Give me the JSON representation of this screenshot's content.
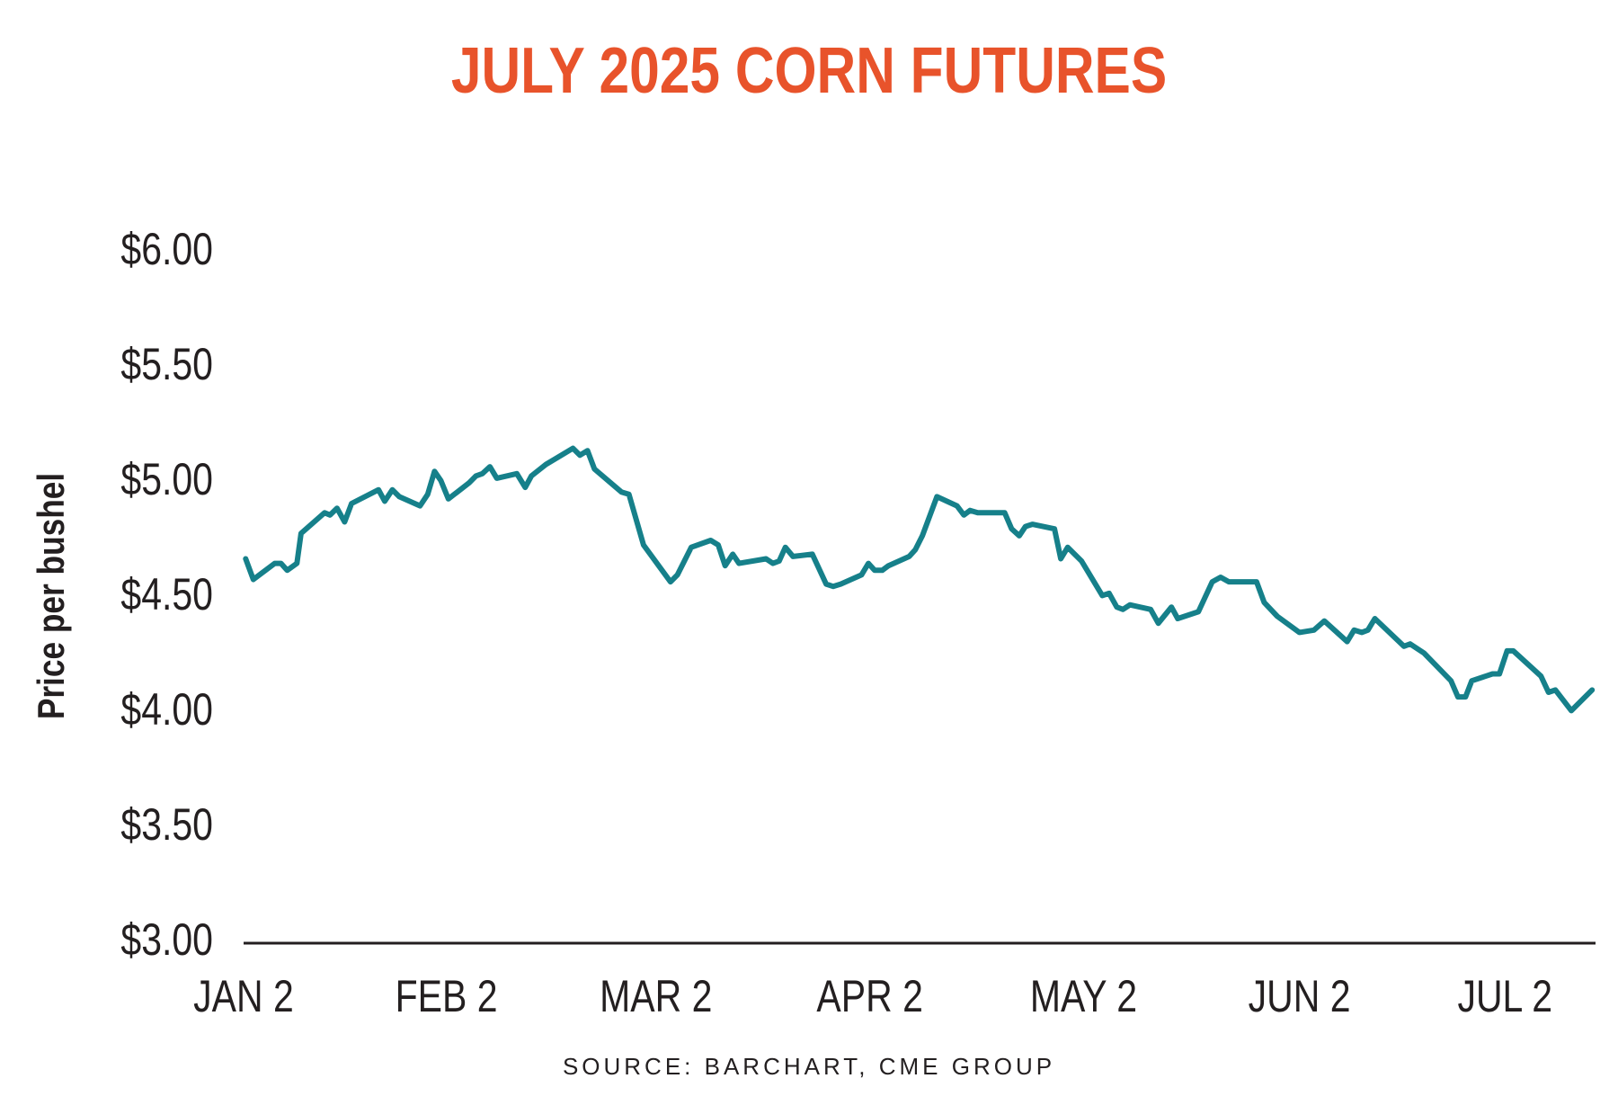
{
  "chart_data": {
    "type": "line",
    "title": "JULY 2025 CORN FUTURES",
    "y_label": "Price per bushel",
    "source": "SOURCE: BARCHART, CME GROUP",
    "xlim": [
      0,
      195
    ],
    "xticks": [
      {
        "value": 0,
        "label": "JAN 2"
      },
      {
        "value": 29.3,
        "label": "FEB 2"
      },
      {
        "value": 59.6,
        "label": "MAR 2"
      },
      {
        "value": 90.5,
        "label": "APR 2"
      },
      {
        "value": 121.4,
        "label": "MAY 2"
      },
      {
        "value": 152.6,
        "label": "JUN 2"
      },
      {
        "value": 182.3,
        "label": "JUL 2"
      }
    ],
    "ylim": [
      3,
      6
    ],
    "yticks": [
      {
        "value": 3,
        "label": "$3.00"
      },
      {
        "value": 3.5,
        "label": "$3.50"
      },
      {
        "value": 4,
        "label": "$4.00"
      },
      {
        "value": 4.5,
        "label": "$4.50"
      },
      {
        "value": 5,
        "label": "$5.00"
      },
      {
        "value": 5.5,
        "label": "$5.50"
      },
      {
        "value": 6,
        "label": "$6.00"
      }
    ],
    "grid": false,
    "x": [
      0.3,
      1.4,
      4.5,
      5.4,
      6.3,
      7.7,
      8.3,
      11.7,
      12.5,
      13.5,
      14.6,
      15.6,
      19.5,
      20.4,
      21.5,
      22.5,
      25.5,
      26.6,
      27.6,
      28.5,
      29.6,
      32.6,
      33.6,
      34.5,
      35.6,
      36.6,
      39.5,
      40.7,
      41.6,
      43.7,
      47.6,
      48.6,
      49.7,
      50.7,
      54.6,
      55.7,
      57.8,
      61.7,
      62.7,
      64.7,
      67.5,
      68.6,
      69.6,
      70.7,
      71.6,
      75.5,
      76.5,
      77.4,
      78.3,
      79.4,
      82.2,
      84.2,
      85.2,
      86.3,
      89.3,
      90.3,
      91.2,
      92.3,
      93.2,
      96.2,
      97.1,
      98.1,
      100.2,
      103.1,
      104.1,
      105,
      106.1,
      110,
      111,
      112.1,
      113,
      114,
      117.2,
      118.1,
      119.1,
      121.1,
      124.1,
      125.1,
      126.2,
      127.1,
      128.1,
      131.1,
      132.2,
      134.1,
      135,
      138,
      140,
      141.2,
      142.4,
      146.4,
      147.5,
      149.4,
      152.6,
      154.7,
      156.2,
      159.5,
      160.5,
      161.6,
      162.5,
      163.5,
      167.7,
      168.6,
      170.6,
      174.5,
      175.5,
      176.6,
      177.5,
      180.5,
      181.5,
      182.6,
      183.5,
      187.5,
      188.6,
      189.6,
      191.9,
      194.9
    ],
    "series": [
      {
        "name": "July 2025 corn futures",
        "color": "#16808a",
        "values": [
          4.67,
          4.58,
          4.65,
          4.65,
          4.62,
          4.65,
          4.78,
          4.87,
          4.86,
          4.89,
          4.83,
          4.91,
          4.97,
          4.92,
          4.97,
          4.94,
          4.9,
          4.95,
          5.05,
          5.01,
          4.93,
          5.0,
          5.03,
          5.04,
          5.07,
          5.02,
          5.04,
          4.98,
          5.03,
          5.08,
          5.15,
          5.12,
          5.14,
          5.06,
          4.96,
          4.95,
          4.73,
          4.57,
          4.6,
          4.72,
          4.75,
          4.73,
          4.64,
          4.69,
          4.65,
          4.67,
          4.65,
          4.66,
          4.72,
          4.68,
          4.69,
          4.56,
          4.55,
          4.56,
          4.6,
          4.65,
          4.62,
          4.62,
          4.64,
          4.68,
          4.71,
          4.77,
          4.94,
          4.9,
          4.86,
          4.88,
          4.87,
          4.87,
          4.8,
          4.77,
          4.81,
          4.82,
          4.8,
          4.67,
          4.72,
          4.66,
          4.51,
          4.52,
          4.46,
          4.45,
          4.47,
          4.45,
          4.39,
          4.46,
          4.41,
          4.44,
          4.57,
          4.59,
          4.57,
          4.57,
          4.48,
          4.42,
          4.35,
          4.36,
          4.4,
          4.31,
          4.36,
          4.35,
          4.36,
          4.41,
          4.29,
          4.3,
          4.26,
          4.14,
          4.07,
          4.07,
          4.14,
          4.17,
          4.17,
          4.27,
          4.27,
          4.16,
          4.09,
          4.1,
          4.01,
          4.1
        ]
      }
    ]
  }
}
